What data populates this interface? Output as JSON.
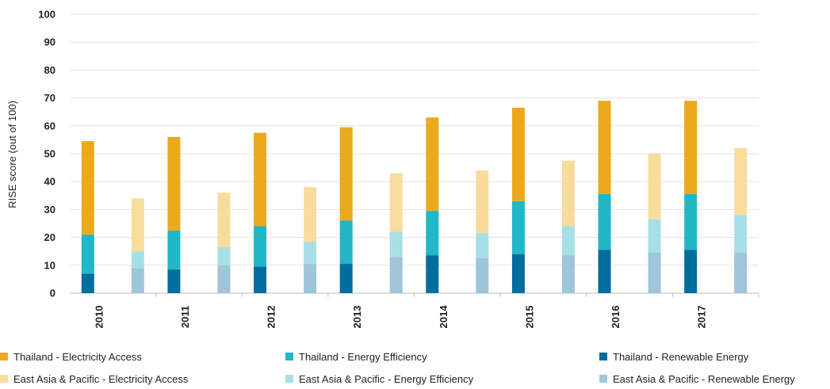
{
  "chart_data": {
    "type": "bar",
    "stacked": true,
    "ylabel": "RISE score (out of 100)",
    "ylim": [
      0,
      100
    ],
    "yticks": [
      0,
      10,
      20,
      30,
      40,
      50,
      60,
      70,
      80,
      90,
      100
    ],
    "grid": true,
    "legend_position": "bottom",
    "categories": [
      "2010",
      "2011",
      "2012",
      "2013",
      "2014",
      "2015",
      "2016",
      "2017"
    ],
    "groups": [
      {
        "group": "Thailand",
        "series": [
          {
            "name": "Thailand - Renewable Energy",
            "component": "Renewable Energy",
            "color": "#006d9c",
            "values": [
              7,
              8.5,
              9.5,
              10.5,
              13.5,
              14,
              15.5,
              15.5
            ]
          },
          {
            "name": "Thailand -  Energy Efficiency",
            "component": "Energy Efficiency",
            "color": "#20b7c6",
            "values": [
              14,
              14,
              14.5,
              15.5,
              16,
              19,
              20,
              20
            ]
          },
          {
            "name": "Thailand - Electricity Access",
            "component": "Electricity Access",
            "color": "#ebaa1c",
            "values": [
              33.5,
              33.5,
              33.5,
              33.5,
              33.5,
              33.5,
              33.5,
              33.5
            ]
          }
        ]
      },
      {
        "group": "East Asia & Pacific",
        "series": [
          {
            "name": "East Asia & Pacific - Renewable Energy",
            "component": "Renewable Energy",
            "color": "#9ec5da",
            "values": [
              9,
              10,
              10.5,
              13,
              12.5,
              13.5,
              14.5,
              14.5
            ]
          },
          {
            "name": "East Asia & Pacific - Energy Efficiency",
            "component": "Energy Efficiency",
            "color": "#a6e0e6",
            "values": [
              6,
              6.5,
              8,
              9,
              9,
              10.5,
              12,
              13.5
            ]
          },
          {
            "name": "East Asia & Pacific - Electricity Access",
            "component": "Electricity Access",
            "color": "#f7dc9c",
            "values": [
              19,
              19.5,
              19.5,
              21,
              22.5,
              23.5,
              23.5,
              24
            ]
          }
        ]
      }
    ],
    "legend": [
      {
        "label": "Thailand - Electricity Access",
        "color": "#ebaa1c"
      },
      {
        "label": "Thailand -  Energy Efficiency",
        "color": "#20b7c6"
      },
      {
        "label": "Thailand - Renewable Energy",
        "color": "#006d9c"
      },
      {
        "label": "East Asia & Pacific - Electricity Access",
        "color": "#f7dc9c"
      },
      {
        "label": "East Asia & Pacific - Energy Efficiency",
        "color": "#a6e0e6"
      },
      {
        "label": "East Asia & Pacific - Renewable Energy",
        "color": "#9ec5da"
      }
    ]
  }
}
